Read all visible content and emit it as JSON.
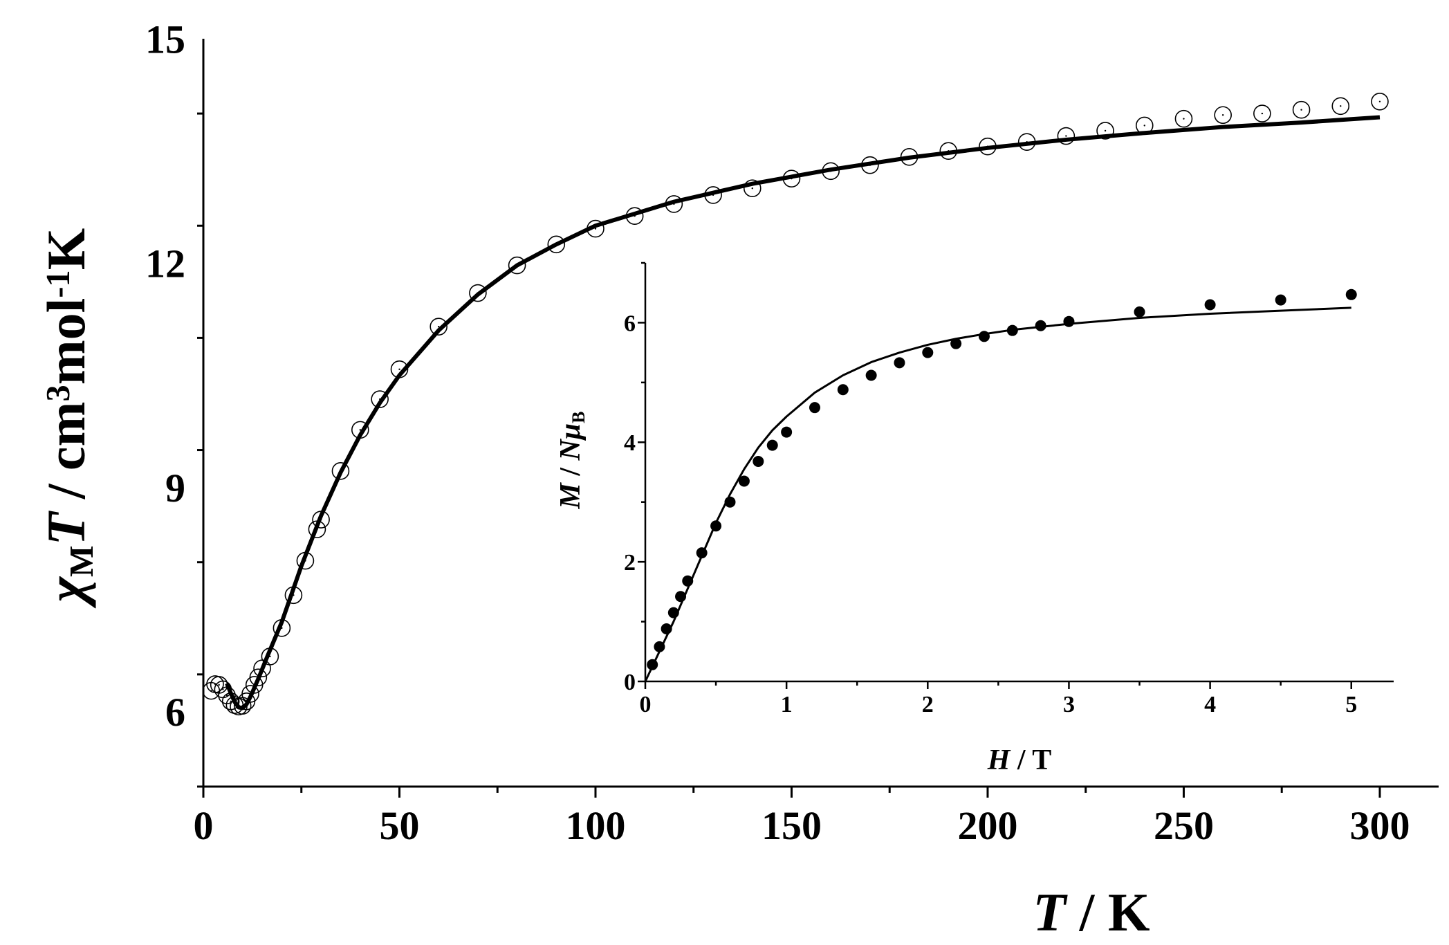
{
  "chart_data": [
    {
      "type": "scatter",
      "title": "",
      "xlabel": {
        "parts": [
          {
            "text": "T",
            "style": "italic"
          },
          {
            "text": " / K"
          }
        ]
      },
      "ylabel": {
        "parts": [
          {
            "text": "χ",
            "style": "italic"
          },
          {
            "text": "M",
            "sub": true
          },
          {
            "text": "T",
            "style": "italic"
          },
          {
            "text": " / cm"
          },
          {
            "text": "3",
            "sup": true
          },
          {
            "text": "mol"
          },
          {
            "text": "-1",
            "sup": true
          },
          {
            "text": "K"
          }
        ]
      },
      "xlim": [
        0,
        315
      ],
      "ylim": [
        5,
        15
      ],
      "xticks": [
        0,
        50,
        100,
        150,
        200,
        250,
        300
      ],
      "yticks": [
        6,
        9,
        12,
        15
      ],
      "grid": false,
      "legend": "none",
      "series": [
        {
          "kind": "points",
          "marker": "open-circle",
          "x": [
            2,
            3,
            4,
            5,
            6,
            7,
            8,
            9,
            10,
            11,
            12,
            13,
            14,
            15,
            17,
            20,
            23,
            26,
            29,
            30,
            35,
            40,
            45,
            50,
            60,
            70,
            80,
            90,
            100,
            110,
            120,
            130,
            140,
            150,
            160,
            170,
            180,
            190,
            200,
            210,
            220,
            230,
            240,
            250,
            260,
            270,
            280,
            290,
            300
          ],
          "y": [
            6.28,
            6.37,
            6.36,
            6.3,
            6.22,
            6.14,
            6.09,
            6.07,
            6.08,
            6.14,
            6.24,
            6.36,
            6.46,
            6.58,
            6.74,
            7.12,
            7.56,
            8.02,
            8.44,
            8.57,
            9.22,
            9.77,
            10.18,
            10.58,
            11.15,
            11.6,
            11.97,
            12.25,
            12.46,
            12.63,
            12.79,
            12.91,
            13.0,
            13.13,
            13.23,
            13.31,
            13.42,
            13.5,
            13.56,
            13.62,
            13.7,
            13.77,
            13.84,
            13.93,
            13.98,
            14.0,
            14.05,
            14.1,
            14.16
          ]
        },
        {
          "kind": "line",
          "x": [
            6,
            7,
            8,
            9,
            10,
            11,
            12,
            14,
            16,
            18,
            20,
            25,
            30,
            35,
            40,
            45,
            50,
            60,
            70,
            80,
            90,
            100,
            120,
            140,
            160,
            180,
            200,
            220,
            240,
            260,
            280,
            300
          ],
          "y": [
            6.38,
            6.25,
            6.13,
            6.06,
            6.05,
            6.1,
            6.2,
            6.44,
            6.7,
            6.95,
            7.2,
            7.95,
            8.62,
            9.2,
            9.7,
            10.13,
            10.5,
            11.1,
            11.58,
            11.97,
            12.25,
            12.5,
            12.82,
            13.06,
            13.25,
            13.41,
            13.54,
            13.65,
            13.74,
            13.82,
            13.88,
            13.95
          ]
        }
      ]
    },
    {
      "type": "scatter",
      "title": "",
      "xlabel": {
        "parts": [
          {
            "text": "H",
            "style": "italic"
          },
          {
            "text": " / T"
          }
        ]
      },
      "ylabel": {
        "parts": [
          {
            "text": "M",
            "style": "italic"
          },
          {
            "text": " / "
          },
          {
            "text": "N",
            "style": "italic"
          },
          {
            "text": "μ",
            "style": "italic"
          },
          {
            "text": "B",
            "sub": true
          }
        ]
      },
      "xlim": [
        0,
        5.3
      ],
      "ylim": [
        0,
        7
      ],
      "xticks": [
        0,
        1,
        2,
        3,
        4,
        5
      ],
      "yticks": [
        0,
        2,
        4,
        6
      ],
      "grid": false,
      "legend": "none",
      "series": [
        {
          "kind": "points",
          "marker": "filled-circle",
          "x": [
            0.05,
            0.1,
            0.15,
            0.2,
            0.25,
            0.3,
            0.4,
            0.5,
            0.6,
            0.7,
            0.8,
            0.9,
            1.0,
            1.2,
            1.4,
            1.6,
            1.8,
            2.0,
            2.2,
            2.4,
            2.6,
            2.8,
            3.0,
            3.5,
            4.0,
            4.5,
            5.0
          ],
          "y": [
            0.28,
            0.58,
            0.88,
            1.15,
            1.42,
            1.68,
            2.15,
            2.6,
            3.0,
            3.35,
            3.68,
            3.95,
            4.17,
            4.58,
            4.88,
            5.12,
            5.33,
            5.5,
            5.65,
            5.77,
            5.87,
            5.95,
            6.02,
            6.18,
            6.3,
            6.38,
            6.47
          ]
        },
        {
          "kind": "line",
          "x": [
            0,
            0.1,
            0.2,
            0.3,
            0.4,
            0.5,
            0.6,
            0.7,
            0.8,
            0.9,
            1.0,
            1.2,
            1.4,
            1.6,
            1.8,
            2.0,
            2.2,
            2.4,
            2.6,
            2.8,
            3.0,
            3.5,
            4.0,
            4.5,
            5.0
          ],
          "y": [
            0.0,
            0.5,
            1.0,
            1.55,
            2.1,
            2.65,
            3.13,
            3.55,
            3.91,
            4.2,
            4.43,
            4.83,
            5.12,
            5.34,
            5.5,
            5.63,
            5.73,
            5.81,
            5.88,
            5.93,
            5.98,
            6.08,
            6.15,
            6.2,
            6.25
          ]
        }
      ]
    }
  ]
}
